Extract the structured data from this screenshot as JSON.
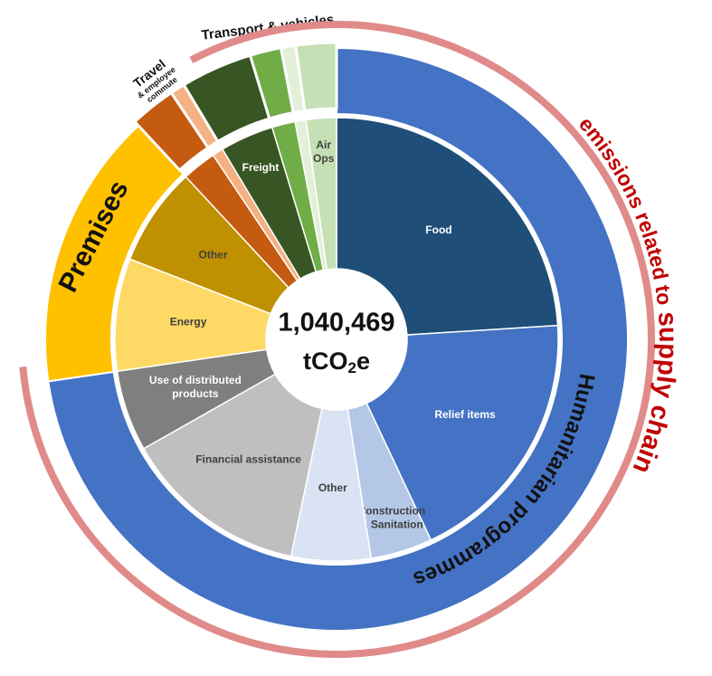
{
  "chart_data": {
    "type": "sunburst",
    "center_label": "1,040,469",
    "center_unit": [
      "tCO",
      "2",
      "e"
    ],
    "annotation": [
      "emissions related to",
      "supply chain"
    ],
    "annotation_color": "#c00000",
    "annotation_arc_color": "#e08a8a",
    "groups": [
      {
        "name": [
          "Humanitarian programmes"
        ],
        "color": "#4472c4",
        "children": [
          {
            "name": [
              "Food"
            ],
            "color": "#1f4e79",
            "value": 24
          },
          {
            "name": [
              "Relief items"
            ],
            "color": "#4472c4",
            "value": 19
          },
          {
            "name": [
              "Construction",
              "& Sanitation"
            ],
            "color": "#b4c7e7",
            "value": 4.5
          },
          {
            "name": [
              "Other"
            ],
            "color": "#dae3f3",
            "value": 5.8
          },
          {
            "name": [
              "Financial assistance"
            ],
            "color": "#bfbfbf",
            "value": 13.5
          },
          {
            "name": [
              "Use of distributed",
              "products"
            ],
            "color": "#7f7f7f",
            "value": 5.9
          }
        ]
      },
      {
        "name": [
          "Premises"
        ],
        "color": "#ffc000",
        "children": [
          {
            "name": [
              "Energy"
            ],
            "color": "#ffd966",
            "value": 8.2
          },
          {
            "name": [
              "Other"
            ],
            "color": "#bf9000",
            "value": 7.2
          }
        ]
      },
      {
        "name": [
          "Travel",
          "& employee",
          "commute"
        ],
        "color": null,
        "children": [
          {
            "name": null,
            "color": "#c55a11",
            "value": 2.5
          },
          {
            "name": null,
            "color": "#f4b183",
            "value": 0.8
          }
        ]
      },
      {
        "name": [
          "Transport & vehicles"
        ],
        "color": null,
        "children": [
          {
            "name": [
              "Freight"
            ],
            "color": "#375623",
            "value": 3.9
          },
          {
            "name": null,
            "color": "#70ad47",
            "value": 1.7
          },
          {
            "name": null,
            "color": "#e2f0d9",
            "value": 0.8
          },
          {
            "name": [
              "Air",
              "Ops"
            ],
            "color": "#c5e0b4",
            "value": 2.2
          }
        ]
      }
    ]
  }
}
